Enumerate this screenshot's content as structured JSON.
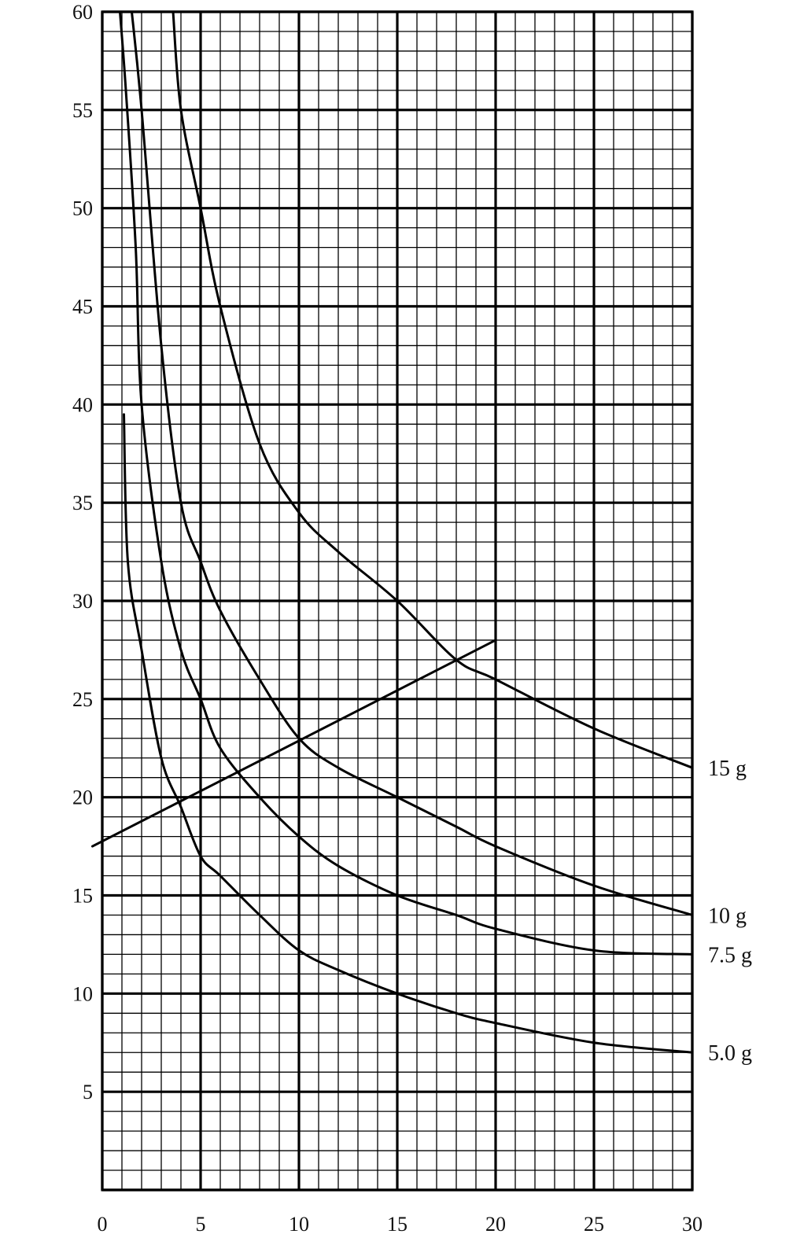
{
  "chart_data": {
    "type": "line",
    "title": "",
    "xlabel": "",
    "ylabel": "",
    "xlim": [
      0,
      30
    ],
    "ylim": [
      0,
      60
    ],
    "x_ticks": [
      "0",
      "5",
      "10",
      "15",
      "20",
      "25",
      "30"
    ],
    "y_ticks": [
      "5",
      "10",
      "15",
      "20",
      "25",
      "30",
      "35",
      "40",
      "45",
      "50",
      "55",
      "60"
    ],
    "grid": true,
    "grid_minor_step": 1,
    "grid_major_step": 5,
    "series": [
      {
        "name": "15 g",
        "x": [
          3.6,
          4,
          5,
          6,
          8,
          10,
          12,
          15,
          18,
          20,
          25,
          30
        ],
        "y": [
          60,
          55,
          50,
          45,
          38,
          34.5,
          32.5,
          30,
          27,
          26,
          23.5,
          21.5
        ]
      },
      {
        "name": "10 g",
        "x": [
          1.5,
          2,
          3,
          4,
          5,
          6,
          8,
          10,
          12,
          15,
          18,
          20,
          25,
          30
        ],
        "y": [
          60,
          55,
          43,
          35,
          32,
          29.5,
          26,
          23,
          21.5,
          20,
          18.5,
          17.5,
          15.5,
          14
        ]
      },
      {
        "name": "7.5 g",
        "x": [
          0.9,
          1.2,
          1.7,
          2,
          3,
          4,
          5,
          6,
          8,
          10,
          12,
          15,
          18,
          20,
          25,
          30
        ],
        "y": [
          60,
          56,
          48,
          40,
          32,
          27.5,
          25,
          22.5,
          20,
          18,
          16.5,
          15,
          14,
          13.3,
          12.2,
          12
        ]
      },
      {
        "name": "5.0 g",
        "x": [
          1.1,
          1.3,
          2,
          3,
          4,
          5,
          6,
          8,
          10,
          12,
          15,
          18,
          20,
          25,
          30
        ],
        "y": [
          39.5,
          32,
          27.5,
          22,
          19.5,
          17,
          16,
          14,
          12.2,
          11.2,
          10,
          9,
          8.5,
          7.5,
          7
        ]
      },
      {
        "name": "",
        "x": [
          -0.5,
          20
        ],
        "y": [
          17.5,
          28
        ]
      }
    ]
  }
}
